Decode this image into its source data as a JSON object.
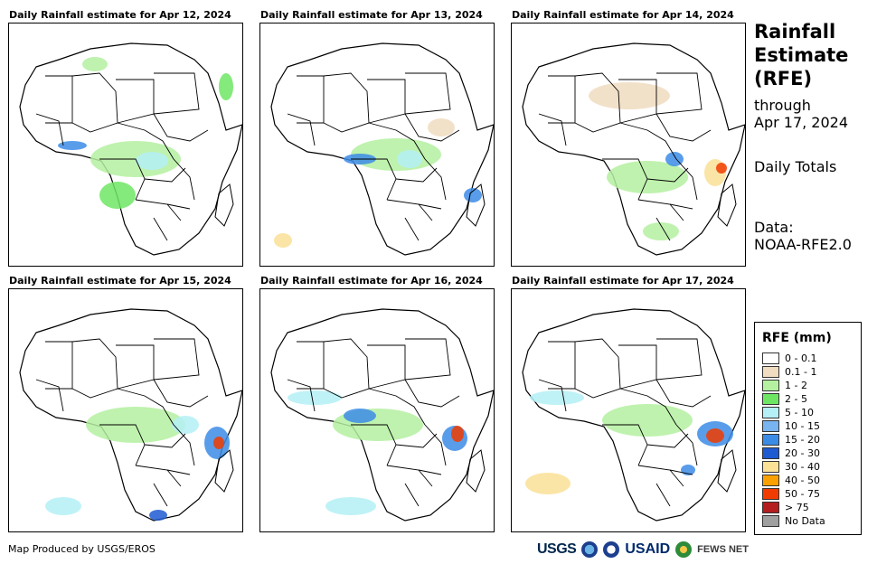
{
  "panels": [
    {
      "title": "Daily Rainfall estimate for Apr 12, 2024"
    },
    {
      "title": "Daily Rainfall estimate for Apr 13, 2024"
    },
    {
      "title": "Daily Rainfall estimate for Apr 14, 2024"
    },
    {
      "title": "Daily Rainfall estimate for Apr 15, 2024"
    },
    {
      "title": "Daily Rainfall estimate for Apr 16, 2024"
    },
    {
      "title": "Daily Rainfall estimate for Apr 17, 2024"
    }
  ],
  "sidebar": {
    "title_line1": "Rainfall",
    "title_line2": "Estimate",
    "title_line3": "(RFE)",
    "through_label": "through",
    "through_date": "Apr 17, 2024",
    "totals_label": "Daily Totals",
    "data_label": "Data:",
    "data_source": "NOAA-RFE2.0"
  },
  "legend": {
    "title": "RFE (mm)",
    "items": [
      {
        "label": "0 - 0.1",
        "color": "#ffffff"
      },
      {
        "label": "0.1 - 1",
        "color": "#f0dcc0"
      },
      {
        "label": "1 - 2",
        "color": "#b4f0a0"
      },
      {
        "label": "2 - 5",
        "color": "#6ee664"
      },
      {
        "label": "5 - 10",
        "color": "#b4f0f5"
      },
      {
        "label": "10 - 15",
        "color": "#78b4f0"
      },
      {
        "label": "15 - 20",
        "color": "#3c8ce6"
      },
      {
        "label": "20 - 30",
        "color": "#1e5ad2"
      },
      {
        "label": "30 - 40",
        "color": "#fae196"
      },
      {
        "label": "40 - 50",
        "color": "#faa000"
      },
      {
        "label": "50 - 75",
        "color": "#f03c00"
      },
      {
        "label": "> 75",
        "color": "#b41e1e"
      },
      {
        "label": "No Data",
        "color": "#a0a0a0"
      }
    ]
  },
  "footer": {
    "credit": "Map Produced by USGS/EROS"
  },
  "logos": {
    "usgs": "USGS",
    "usaid": "USAID",
    "fews": "FEWS NET"
  }
}
